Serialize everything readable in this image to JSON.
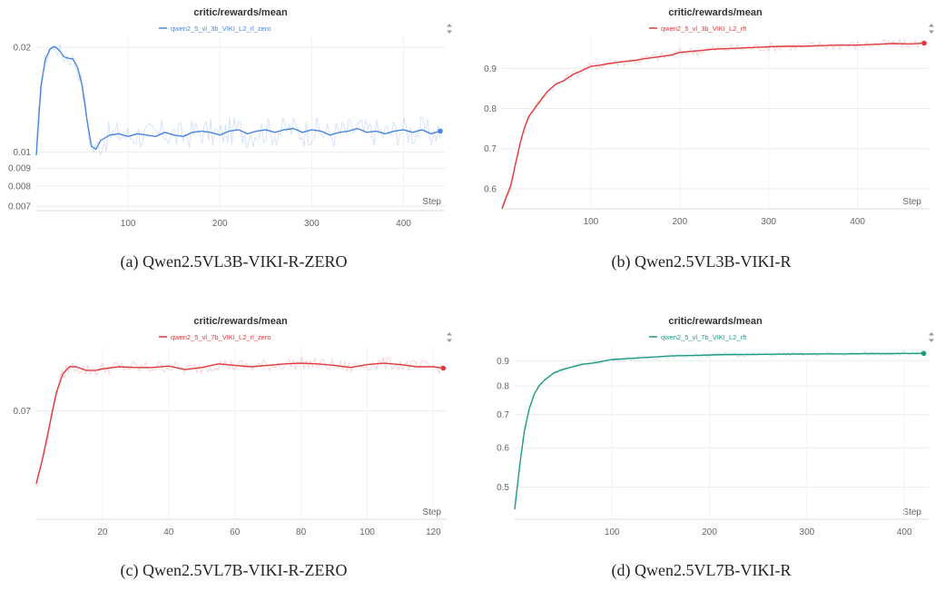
{
  "charts": [
    {
      "caption": "(a) Qwen2.5VL3B-VIKI-R-ZERO",
      "chart_data": {
        "type": "line",
        "title": "critic/rewards/mean",
        "xlabel": "Step",
        "series": [
          {
            "name": "qwen2_5_vl_3b_VIKI_L2_rl_zero",
            "color": "#4a86e0",
            "x": [
              0,
              5,
              10,
              15,
              20,
              25,
              30,
              35,
              40,
              45,
              50,
              55,
              60,
              65,
              70,
              80,
              90,
              100,
              110,
              120,
              130,
              140,
              150,
              160,
              170,
              180,
              190,
              200,
              210,
              220,
              230,
              240,
              250,
              260,
              270,
              280,
              290,
              300,
              310,
              320,
              330,
              340,
              350,
              360,
              370,
              380,
              390,
              400,
              410,
              420,
              430,
              440
            ],
            "y": [
              0.0098,
              0.0155,
              0.0185,
              0.0198,
              0.0201,
              0.0196,
              0.0188,
              0.0186,
              0.0185,
              0.0175,
              0.0155,
              0.0125,
              0.0104,
              0.0102,
              0.0108,
              0.0112,
              0.0113,
              0.0111,
              0.0113,
              0.0112,
              0.0111,
              0.0114,
              0.0112,
              0.0111,
              0.0114,
              0.0115,
              0.0114,
              0.0112,
              0.0115,
              0.0116,
              0.0113,
              0.0115,
              0.0116,
              0.0114,
              0.0116,
              0.0117,
              0.0114,
              0.0116,
              0.0115,
              0.0112,
              0.0114,
              0.0115,
              0.0117,
              0.0114,
              0.0115,
              0.0113,
              0.0115,
              0.0116,
              0.0114,
              0.0116,
              0.0113,
              0.0115
            ]
          }
        ],
        "xticks": [
          100,
          200,
          300,
          400
        ],
        "yticks": [
          0.007,
          0.008,
          0.009,
          0.01,
          0.02
        ],
        "ytick_labels": [
          "0.007",
          "0.008",
          "0.009",
          "0.01",
          "0.02"
        ],
        "xlim": [
          0,
          445
        ],
        "ylim": [
          0.0068,
          0.0215
        ],
        "yscale": "log",
        "noise": 0.0011,
        "grid": true,
        "legend": "top-center"
      }
    },
    {
      "caption": "(b) Qwen2.5VL3B-VIKI-R",
      "chart_data": {
        "type": "line",
        "title": "critic/rewards/mean",
        "xlabel": "Step",
        "series": [
          {
            "name": "qwen2_5_vl_3b_VIKI_L2_rft",
            "color": "#e0393e",
            "x": [
              0,
              5,
              10,
              15,
              20,
              25,
              30,
              40,
              50,
              60,
              70,
              80,
              90,
              100,
              110,
              120,
              130,
              140,
              150,
              160,
              170,
              180,
              190,
              200,
              220,
              240,
              260,
              280,
              300,
              320,
              340,
              360,
              380,
              400,
              420,
              440,
              460,
              475
            ],
            "y": [
              0.55,
              0.58,
              0.61,
              0.66,
              0.71,
              0.75,
              0.78,
              0.81,
              0.84,
              0.86,
              0.87,
              0.885,
              0.895,
              0.905,
              0.908,
              0.912,
              0.915,
              0.918,
              0.92,
              0.924,
              0.927,
              0.93,
              0.933,
              0.94,
              0.944,
              0.948,
              0.95,
              0.952,
              0.954,
              0.955,
              0.955,
              0.957,
              0.958,
              0.958,
              0.96,
              0.962,
              0.961,
              0.963
            ]
          }
        ],
        "xticks": [
          100,
          200,
          300,
          400
        ],
        "yticks": [
          0.6,
          0.7,
          0.8,
          0.9
        ],
        "ytick_labels": [
          "0.6",
          "0.7",
          "0.8",
          "0.9"
        ],
        "xlim": [
          0,
          480
        ],
        "ylim": [
          0.55,
          0.98
        ],
        "yscale": "linear",
        "noise": 0.012,
        "grid": true,
        "legend": "top-center"
      }
    },
    {
      "caption": "(c) Qwen2.5VL7B-VIKI-R-ZERO",
      "chart_data": {
        "type": "line",
        "title": "critic/rewards/mean",
        "xlabel": "Step",
        "series": [
          {
            "name": "qwen2_5_vl_7b_VIKI_L2_rl_zero",
            "color": "#e0393e",
            "x": [
              0,
              2,
              4,
              6,
              8,
              10,
              12,
              15,
              18,
              20,
              25,
              30,
              35,
              40,
              45,
              50,
              55,
              60,
              65,
              70,
              75,
              80,
              85,
              90,
              95,
              100,
              105,
              110,
              115,
              120,
              123
            ],
            "y": [
              0.0598,
              0.0635,
              0.068,
              0.0725,
              0.0752,
              0.0762,
              0.0762,
              0.0757,
              0.0757,
              0.0759,
              0.0762,
              0.0761,
              0.0761,
              0.0763,
              0.0758,
              0.0761,
              0.0766,
              0.0764,
              0.0762,
              0.0764,
              0.0766,
              0.0767,
              0.0766,
              0.0764,
              0.0761,
              0.0765,
              0.0767,
              0.0765,
              0.0762,
              0.0762,
              0.076
            ]
          }
        ],
        "xticks": [
          20,
          40,
          60,
          80,
          100,
          120
        ],
        "yticks": [
          0.07
        ],
        "ytick_labels": [
          "0.07"
        ],
        "xlim": [
          0,
          124
        ],
        "ylim": [
          0.0548,
          0.079
        ],
        "yscale": "linear",
        "noise": 0.0009,
        "grid": true,
        "legend": "top-center"
      }
    },
    {
      "caption": "(d) Qwen2.5VL7B-VIKI-R",
      "chart_data": {
        "type": "line",
        "title": "critic/rewards/mean",
        "xlabel": "Step",
        "series": [
          {
            "name": "qwen2_5_vl_7b_VIKI_L2_rft",
            "color": "#1e9a84",
            "x": [
              0,
              5,
              10,
              15,
              20,
              25,
              30,
              40,
              50,
              60,
              70,
              80,
              90,
              100,
              120,
              140,
              160,
              180,
              200,
              220,
              240,
              260,
              280,
              300,
              320,
              340,
              360,
              380,
              400,
              420
            ],
            "y": [
              0.45,
              0.55,
              0.65,
              0.72,
              0.77,
              0.8,
              0.82,
              0.85,
              0.865,
              0.875,
              0.885,
              0.89,
              0.897,
              0.905,
              0.91,
              0.915,
              0.92,
              0.922,
              0.924,
              0.926,
              0.926,
              0.927,
              0.928,
              0.928,
              0.929,
              0.929,
              0.93,
              0.93,
              0.931,
              0.931
            ]
          }
        ],
        "xticks": [
          100,
          200,
          300,
          400
        ],
        "yticks": [
          0.5,
          0.6,
          0.7,
          0.8,
          0.9
        ],
        "ytick_labels": [
          "0.5",
          "0.6",
          "0.7",
          "0.8",
          "0.9"
        ],
        "xlim": [
          0,
          425
        ],
        "ylim": [
          0.43,
          0.96
        ],
        "yscale": "log",
        "noise": 0.01,
        "grid": true,
        "legend": "top-center"
      }
    }
  ]
}
